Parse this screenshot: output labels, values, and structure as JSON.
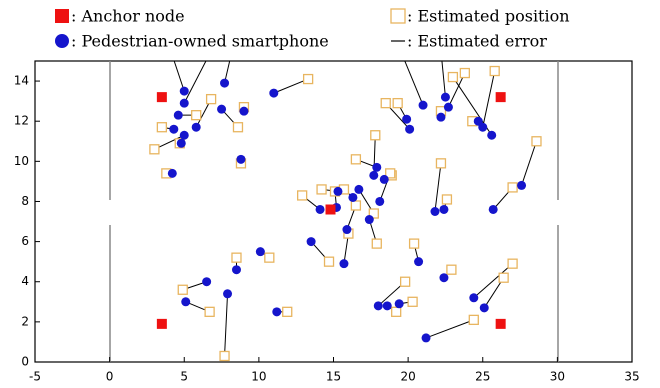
{
  "chart_data": {
    "type": "scatter",
    "xlim": [
      -5,
      35
    ],
    "xticks": [
      -5,
      0,
      5,
      10,
      15,
      20,
      25,
      30,
      35
    ],
    "ylim": [
      0,
      15
    ],
    "yticks": [
      0,
      2,
      4,
      6,
      8,
      10,
      12,
      14
    ],
    "grid": false,
    "series": [
      {
        "name": ": Anchor node",
        "color": "#ee1111",
        "marker": "square",
        "x": [
          3.5,
          26.2,
          3.5,
          26.2,
          14.8
        ],
        "y": [
          13.2,
          13.2,
          1.9,
          1.9,
          7.6
        ]
      },
      {
        "name": ": Pedestrian-owned smartphone",
        "color": "#1515cc",
        "marker": "circle",
        "x": [
          5.0,
          5.0,
          4.6,
          5.8,
          4.3,
          5.0,
          4.8,
          4.2,
          7.7,
          7.5,
          9.0,
          8.8,
          11.0,
          21.0,
          19.9,
          20.1,
          22.7,
          22.5,
          24.7,
          25.0,
          25.6,
          22.2,
          17.7,
          17.9,
          18.4,
          16.7,
          15.3,
          15.2,
          14.1,
          16.3,
          15.9,
          17.4,
          18.1,
          13.5,
          15.7,
          21.8,
          22.4,
          25.7,
          27.6,
          10.1,
          8.5,
          6.5,
          5.1,
          7.9,
          11.2,
          20.7,
          22.4,
          18.0,
          18.6,
          19.4,
          24.4,
          25.1,
          21.2
        ],
        "y": [
          13.5,
          12.9,
          12.3,
          11.7,
          11.6,
          11.3,
          10.9,
          9.4,
          13.9,
          12.6,
          12.5,
          10.1,
          13.4,
          12.8,
          12.1,
          11.6,
          12.7,
          13.2,
          12.0,
          11.7,
          11.3,
          12.2,
          9.3,
          9.7,
          9.1,
          8.6,
          8.5,
          7.7,
          7.6,
          8.2,
          6.6,
          7.1,
          8.0,
          6.0,
          4.9,
          7.5,
          7.6,
          7.6,
          8.8,
          5.5,
          4.6,
          4.0,
          3.0,
          3.4,
          2.5,
          5.0,
          4.2,
          2.8,
          2.8,
          2.9,
          3.2,
          2.7,
          1.2
        ]
      },
      {
        "name": ": Estimated position",
        "color": "#e8b560",
        "marker": "open-square",
        "x": [
          4.1,
          6.8,
          5.8,
          6.8,
          3.5,
          3.0,
          4.7,
          3.8,
          8.2,
          8.6,
          9.0,
          8.8,
          13.3,
          19.5,
          19.3,
          18.5,
          23.8,
          22.2,
          24.3,
          25.8,
          23.0,
          22.2,
          17.8,
          16.5,
          18.9,
          17.7,
          14.2,
          15.1,
          12.9,
          15.7,
          16.5,
          17.9,
          18.8,
          14.7,
          16.0,
          22.2,
          22.6,
          27.0,
          28.6,
          10.7,
          8.5,
          4.9,
          6.7,
          7.7,
          11.9,
          20.4,
          22.9,
          19.8,
          19.2,
          20.3,
          27.0,
          26.4,
          24.4
        ],
        "y": [
          15.5,
          15.5,
          12.3,
          13.1,
          11.7,
          10.6,
          10.9,
          9.4,
          15.5,
          11.7,
          12.7,
          9.9,
          14.1,
          15.5,
          12.9,
          12.9,
          14.4,
          15.5,
          12.0,
          14.5,
          14.2,
          12.5,
          11.3,
          10.1,
          9.3,
          7.4,
          8.6,
          8.5,
          8.3,
          8.6,
          7.8,
          5.9,
          9.4,
          5.0,
          6.4,
          9.9,
          8.1,
          8.7,
          11.0,
          5.2,
          5.2,
          3.6,
          2.5,
          0.3,
          2.5,
          5.9,
          4.6,
          4.0,
          2.5,
          3.0,
          4.9,
          4.2,
          2.1
        ]
      },
      {
        "name": ": Estimated error",
        "color": "#000000",
        "marker": "line"
      }
    ]
  }
}
